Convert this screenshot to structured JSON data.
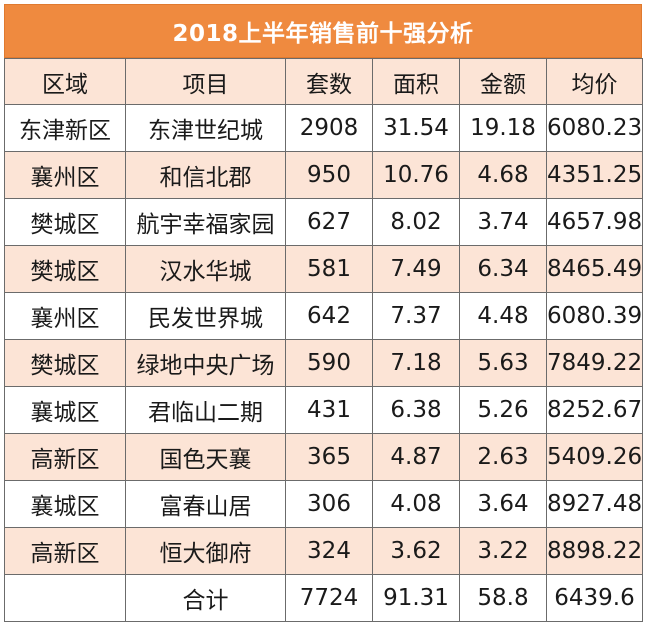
{
  "title": "2018上半年销售前十强分析",
  "headers": [
    "区域",
    "项目",
    "套数",
    "面积",
    "金额",
    "均价"
  ],
  "rows": [
    [
      "东津新区",
      "东津世纪城",
      "2908",
      "31.54",
      "19.18",
      "6080.23"
    ],
    [
      "襄州区",
      "和信北郡",
      "950",
      "10.76",
      "4.68",
      "4351.25"
    ],
    [
      "樊城区",
      "航宇幸福家园",
      "627",
      "8.02",
      "3.74",
      "4657.98"
    ],
    [
      "樊城区",
      "汉水华城",
      "581",
      "7.49",
      "6.34",
      "8465.49"
    ],
    [
      "襄州区",
      "民发世界城",
      "642",
      "7.37",
      "4.48",
      "6080.39"
    ],
    [
      "樊城区",
      "绿地中央广场",
      "590",
      "7.18",
      "5.63",
      "7849.22"
    ],
    [
      "襄城区",
      "君临山二期",
      "431",
      "6.38",
      "5.26",
      "8252.67"
    ],
    [
      "高新区",
      "国色天襄",
      "365",
      "4.87",
      "2.63",
      "5409.26"
    ],
    [
      "襄城区",
      "富春山居",
      "306",
      "4.08",
      "3.64",
      "8927.48"
    ],
    [
      "高新区",
      "恒大御府",
      "324",
      "3.62",
      "3.22",
      "8898.22"
    ]
  ],
  "total": [
    "",
    "合计",
    "7724",
    "91.31",
    "58.8",
    "6439.6"
  ],
  "colors": {
    "title_bg": "#ef8a3f",
    "stripe": "#fce4d6",
    "border": "#6b6b6b"
  }
}
